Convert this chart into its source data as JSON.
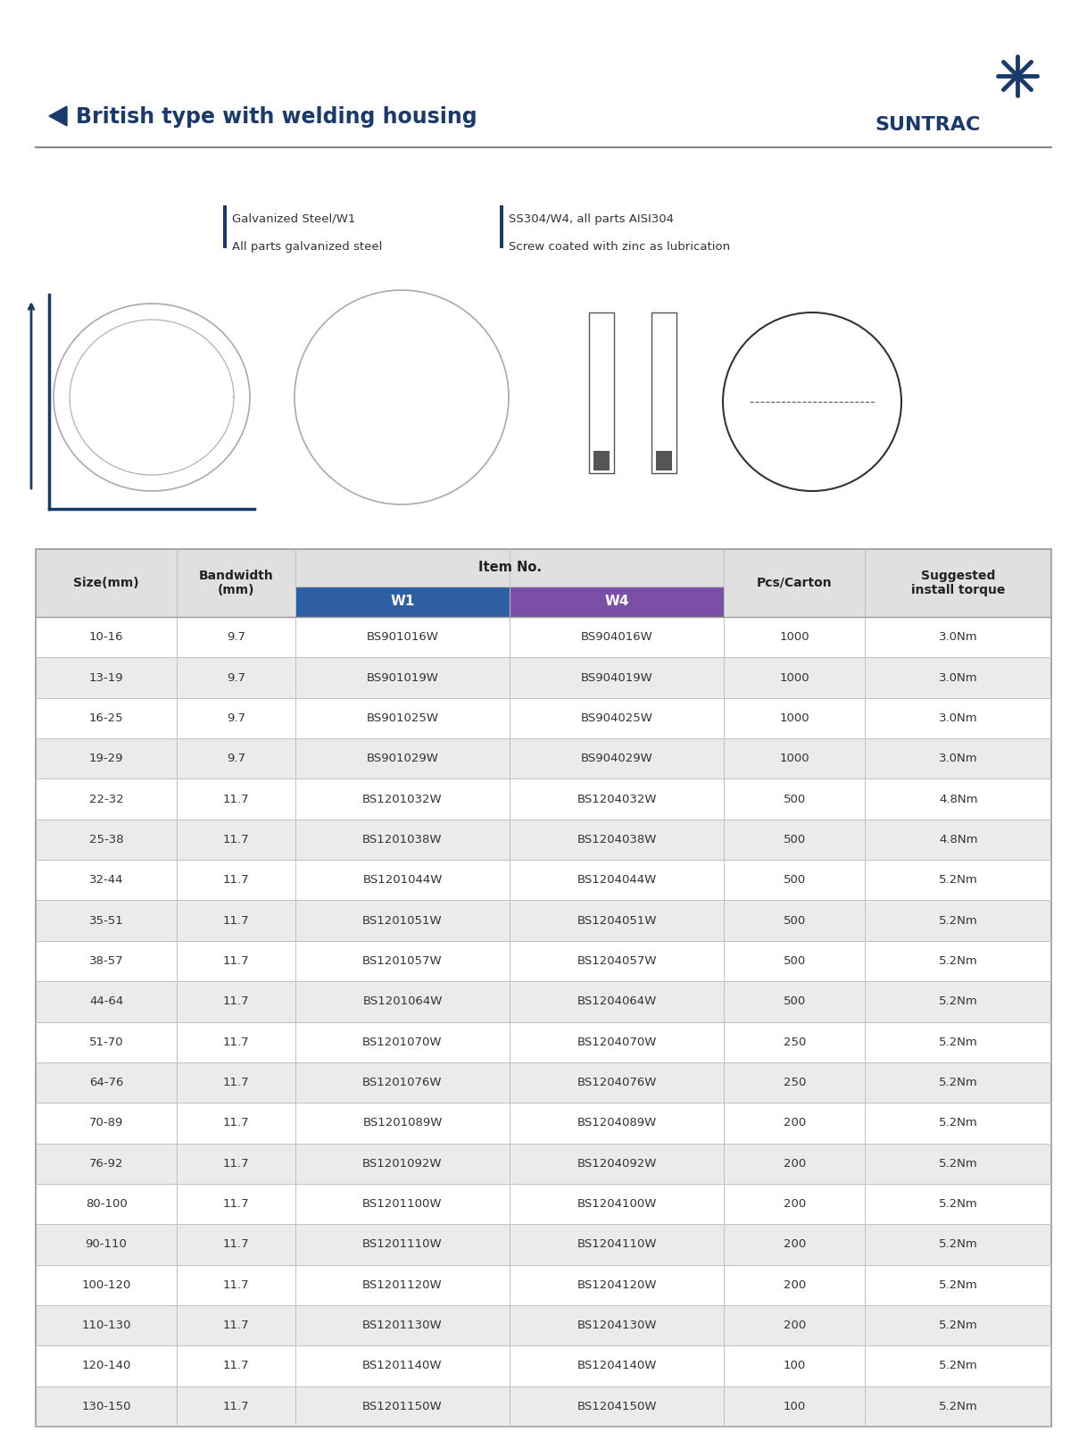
{
  "title": "British type with welding housing",
  "brand": "SUNTRAC",
  "rows": [
    [
      "10-16",
      "9.7",
      "BS901016W",
      "BS904016W",
      "1000",
      "3.0Nm"
    ],
    [
      "13-19",
      "9.7",
      "BS901019W",
      "BS904019W",
      "1000",
      "3.0Nm"
    ],
    [
      "16-25",
      "9.7",
      "BS901025W",
      "BS904025W",
      "1000",
      "3.0Nm"
    ],
    [
      "19-29",
      "9.7",
      "BS901029W",
      "BS904029W",
      "1000",
      "3.0Nm"
    ],
    [
      "22-32",
      "11.7",
      "BS1201032W",
      "BS1204032W",
      "500",
      "4.8Nm"
    ],
    [
      "25-38",
      "11.7",
      "BS1201038W",
      "BS1204038W",
      "500",
      "4.8Nm"
    ],
    [
      "32-44",
      "11.7",
      "BS1201044W",
      "BS1204044W",
      "500",
      "5.2Nm"
    ],
    [
      "35-51",
      "11.7",
      "BS1201051W",
      "BS1204051W",
      "500",
      "5.2Nm"
    ],
    [
      "38-57",
      "11.7",
      "BS1201057W",
      "BS1204057W",
      "500",
      "5.2Nm"
    ],
    [
      "44-64",
      "11.7",
      "BS1201064W",
      "BS1204064W",
      "500",
      "5.2Nm"
    ],
    [
      "51-70",
      "11.7",
      "BS1201070W",
      "BS1204070W",
      "250",
      "5.2Nm"
    ],
    [
      "64-76",
      "11.7",
      "BS1201076W",
      "BS1204076W",
      "250",
      "5.2Nm"
    ],
    [
      "70-89",
      "11.7",
      "BS1201089W",
      "BS1204089W",
      "200",
      "5.2Nm"
    ],
    [
      "76-92",
      "11.7",
      "BS1201092W",
      "BS1204092W",
      "200",
      "5.2Nm"
    ],
    [
      "80-100",
      "11.7",
      "BS1201100W",
      "BS1204100W",
      "200",
      "5.2Nm"
    ],
    [
      "90-110",
      "11.7",
      "BS1201110W",
      "BS1204110W",
      "200",
      "5.2Nm"
    ],
    [
      "100-120",
      "11.7",
      "BS1201120W",
      "BS1204120W",
      "200",
      "5.2Nm"
    ],
    [
      "110-130",
      "11.7",
      "BS1201130W",
      "BS1204130W",
      "200",
      "5.2Nm"
    ],
    [
      "120-140",
      "11.7",
      "BS1201140W",
      "BS1204140W",
      "100",
      "5.2Nm"
    ],
    [
      "130-150",
      "11.7",
      "BS1201150W",
      "BS1204150W",
      "100",
      "5.2Nm"
    ]
  ],
  "w1_color": "#2e5fa3",
  "w4_color": "#7b4fa6",
  "row_even_bg": "#ebebeb",
  "row_odd_bg": "#ffffff",
  "header_bg": "#e0e0e0",
  "border_color": "#c0c0c0",
  "text_color": "#333333",
  "title_color": "#1a3a6b",
  "blue_accent": "#1a3a6b",
  "note1_line1": "Galvanized Steel/W1",
  "note1_line2": "All parts galvanized steel",
  "note2_line1": "SS304/W4, all parts AISI304",
  "note2_line2": "Screw coated with zinc as lubrication"
}
